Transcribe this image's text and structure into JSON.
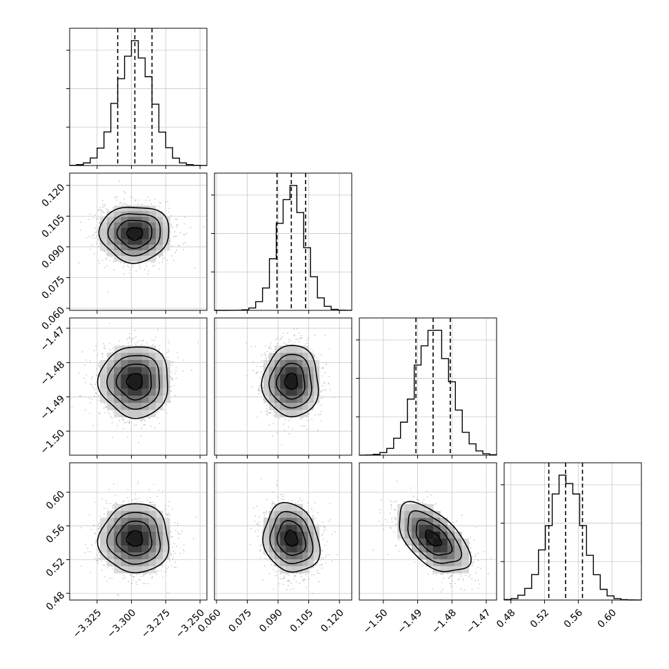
{
  "chart_data": {
    "type": "corner",
    "colors": {
      "line": "#000000",
      "grid": "#c8c8c8",
      "points": "#9a9a9a"
    },
    "grid": true,
    "parameters": [
      {
        "range": [
          -3.345,
          -3.245
        ],
        "ticks": [
          -3.325,
          -3.3,
          -3.275,
          -3.25
        ],
        "tick_labels": [
          "−3.325",
          "−3.300",
          "−3.275",
          "−3.250"
        ],
        "mean": -3.2975,
        "sd": 0.0127,
        "quantiles": [
          -3.31,
          -3.2975,
          -3.285
        ]
      },
      {
        "range": [
          0.059,
          0.126
        ],
        "ticks": [
          0.06,
          0.075,
          0.09,
          0.105,
          0.12
        ],
        "tick_labels": [
          "0.060",
          "0.075",
          "0.090",
          "0.105",
          "0.120"
        ],
        "mean": 0.0965,
        "sd": 0.0068,
        "quantiles": [
          0.0895,
          0.0965,
          0.1035
        ]
      },
      {
        "range": [
          -1.507,
          -1.467
        ],
        "ticks": [
          -1.5,
          -1.49,
          -1.48,
          -1.47
        ],
        "tick_labels": [
          "−1.50",
          "−1.49",
          "−1.48",
          "−1.47"
        ],
        "mean": -1.4855,
        "sd": 0.0052,
        "quantiles": [
          -1.4905,
          -1.4855,
          -1.4805
        ]
      },
      {
        "range": [
          0.472,
          0.635
        ],
        "ticks": [
          0.48,
          0.52,
          0.56,
          0.6
        ],
        "tick_labels": [
          "0.48",
          "0.52",
          "0.56",
          "0.60"
        ],
        "mean": 0.545,
        "sd": 0.0205,
        "quantiles": [
          0.525,
          0.545,
          0.565
        ]
      }
    ],
    "correlations": [
      {
        "pair": [
          1,
          0
        ],
        "rho": 0.0
      },
      {
        "pair": [
          2,
          0
        ],
        "rho": 0.0
      },
      {
        "pair": [
          2,
          1
        ],
        "rho": 0.0
      },
      {
        "pair": [
          3,
          0
        ],
        "rho": 0.0
      },
      {
        "pair": [
          3,
          1
        ],
        "rho": -0.15
      },
      {
        "pair": [
          3,
          2
        ],
        "rho": -0.55
      }
    ],
    "histogram": {
      "bins": 20
    }
  }
}
